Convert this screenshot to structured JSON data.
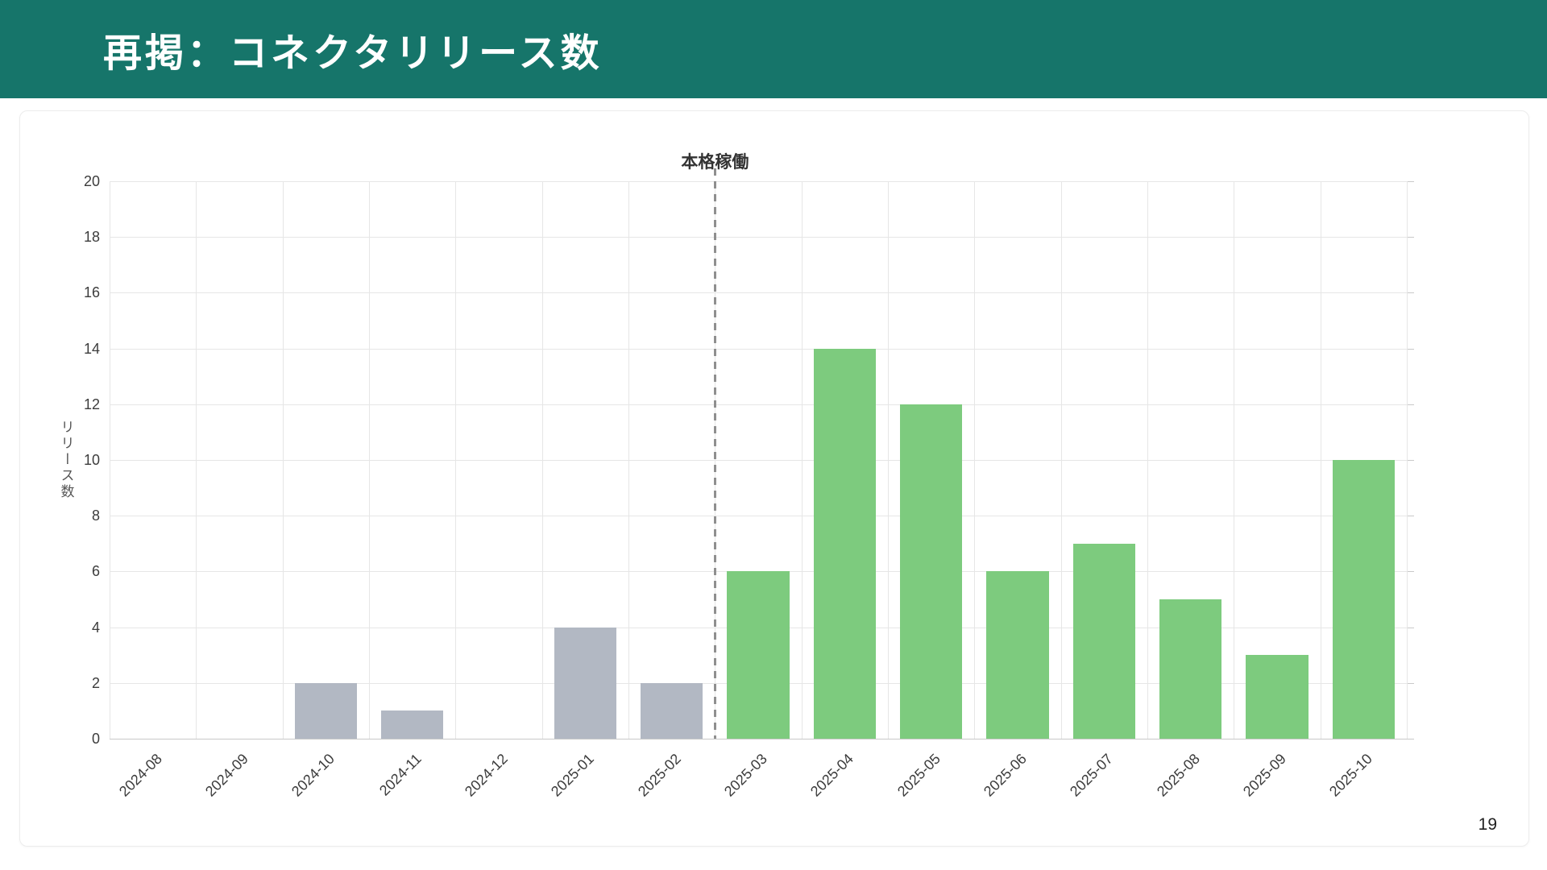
{
  "slide": {
    "title": "再掲：コネクタリリース数",
    "page_number": "19"
  },
  "chart_data": {
    "type": "bar",
    "title": "",
    "ylabel": "リリース数",
    "xlabel": "",
    "categories": [
      "2024-08",
      "2024-09",
      "2024-10",
      "2024-11",
      "2024-12",
      "2025-01",
      "2025-02",
      "2025-03",
      "2025-04",
      "2025-05",
      "2025-06",
      "2025-07",
      "2025-08",
      "2025-09",
      "2025-10"
    ],
    "values": [
      0,
      0,
      2,
      1,
      0,
      4,
      2,
      6,
      14,
      12,
      6,
      7,
      5,
      3,
      10
    ],
    "ylim": [
      0,
      20
    ],
    "ytick_step": 2,
    "grid": true,
    "legend": "none",
    "annotation": {
      "text": "本格稼働",
      "position": "top-of-divider"
    },
    "divider": {
      "style": "dashed-vertical",
      "before_category": "2025-03"
    },
    "bar_colors": {
      "before_divider": "#b2b8c3",
      "from_divider": "#7dcb7e"
    }
  },
  "theme": {
    "header_bg": "#16756a",
    "header_text": "#ffffff",
    "card_border": "#ececec",
    "grid_color": "#e6e6e6",
    "axis_line_color": "#c9c9c9",
    "tick_label_color": "#3c3c3c",
    "axis_title_color": "#555555",
    "divider_color": "#8f8f8f",
    "annotation_color": "#333333",
    "background": "#ffffff"
  }
}
